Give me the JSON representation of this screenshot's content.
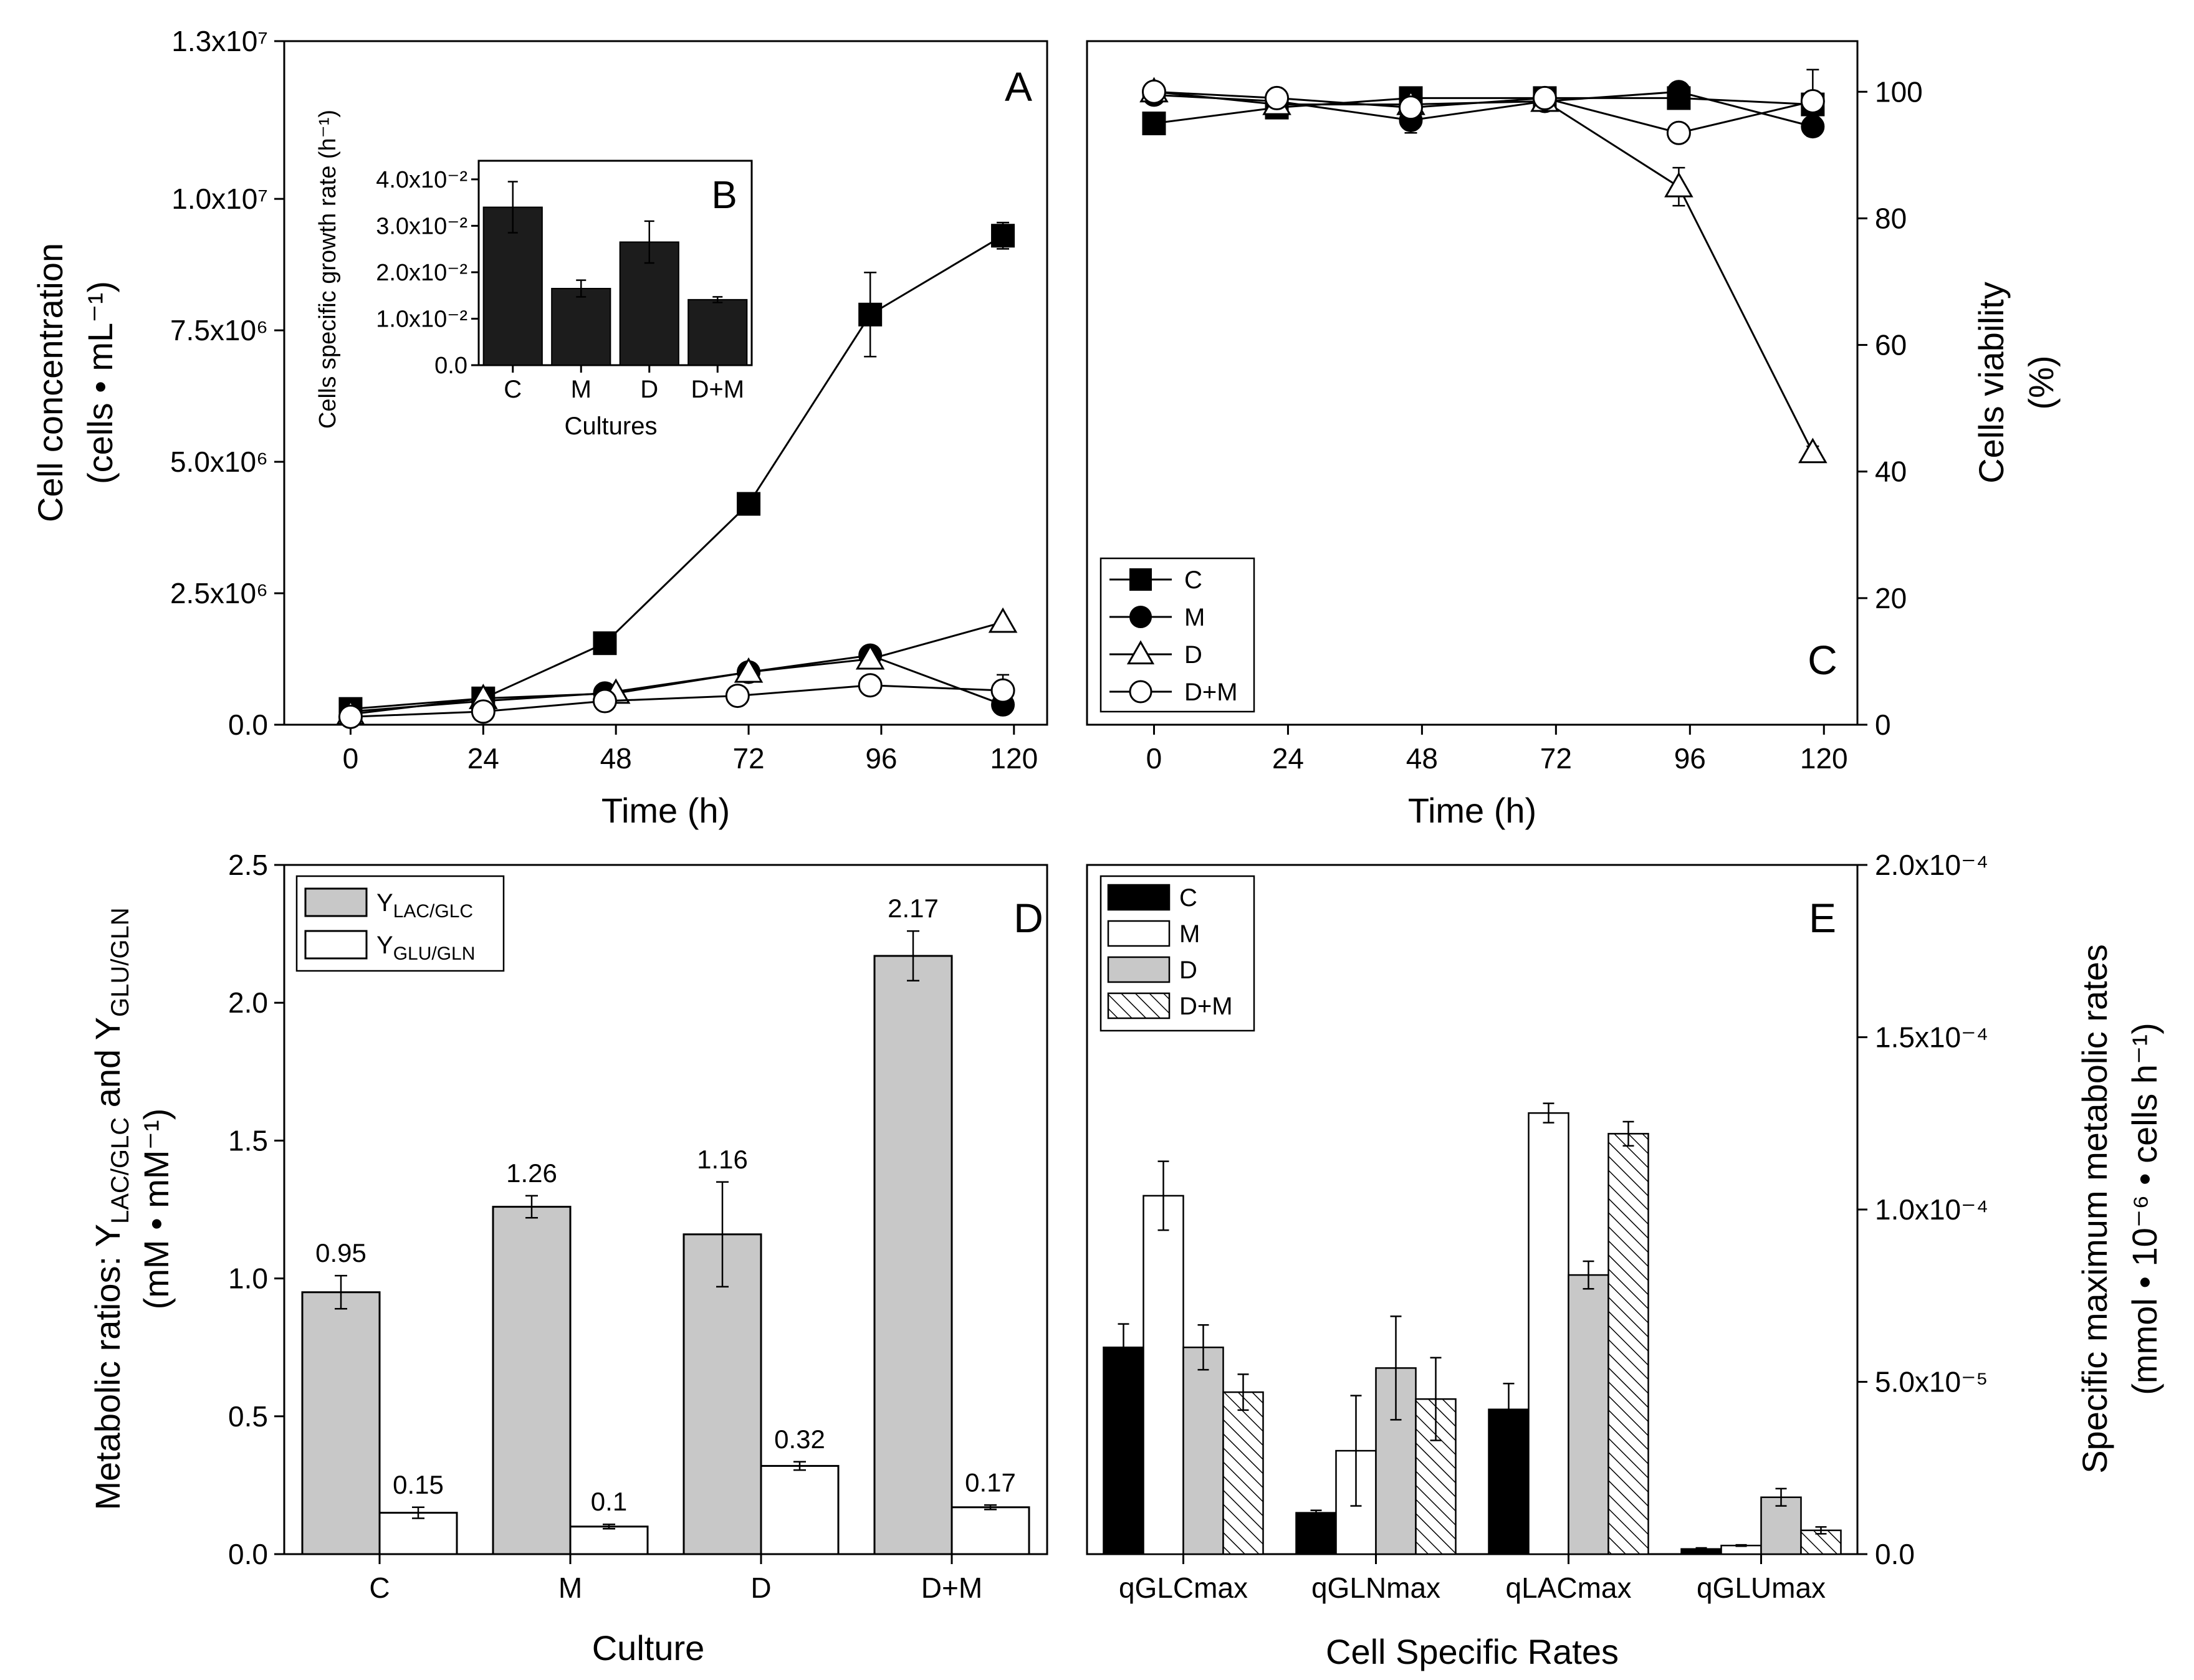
{
  "chart_data": [
    {
      "id": "A",
      "panel_label": "A",
      "type": "line",
      "xlabel": "Time (h)",
      "ylabel_line1": "Cell concentration",
      "ylabel_line2": "(cells • mL⁻¹)",
      "x_ticks": [
        0,
        24,
        48,
        72,
        96,
        120
      ],
      "x_tick_labels": [
        "0",
        "24",
        "48",
        "72",
        "96",
        "120"
      ],
      "y_ticks": [
        0,
        2500000,
        5000000,
        7500000,
        10000000,
        13000000
      ],
      "y_tick_labels": [
        "0.0",
        "2.5x10⁶",
        "5.0x10⁶",
        "7.5x10⁶",
        "1.0x10⁷",
        "1.3x10⁷"
      ],
      "xlim": [
        -12,
        126
      ],
      "ylim": [
        0,
        13000000
      ],
      "series": [
        {
          "name": "C",
          "marker": "square-filled",
          "x": [
            0,
            24,
            46,
            72,
            94,
            118
          ],
          "y": [
            300000,
            500000,
            1550000,
            4200000,
            7800000,
            9300000
          ],
          "err": [
            60000,
            50000,
            120000,
            100000,
            800000,
            250000
          ]
        },
        {
          "name": "M",
          "marker": "circle-filled",
          "x": [
            0,
            24,
            46,
            72,
            94,
            118
          ],
          "y": [
            250000,
            450000,
            600000,
            1000000,
            1320000,
            380000
          ],
          "err": [
            40000,
            50000,
            50000,
            60000,
            100000,
            90000
          ]
        },
        {
          "name": "D",
          "marker": "triangle-open",
          "x": [
            0,
            24,
            48,
            72,
            94,
            118
          ],
          "y": [
            200000,
            500000,
            600000,
            1000000,
            1250000,
            1950000
          ],
          "err": [
            40000,
            50000,
            50000,
            60000,
            100000,
            60000
          ]
        },
        {
          "name": "D+M",
          "marker": "circle-open",
          "x": [
            0,
            24,
            46,
            70,
            94,
            118
          ],
          "y": [
            150000,
            250000,
            450000,
            550000,
            750000,
            650000
          ],
          "err": [
            30000,
            40000,
            50000,
            50000,
            80000,
            300000
          ]
        }
      ]
    },
    {
      "id": "B",
      "panel_label": "B",
      "type": "bar",
      "title": "",
      "xlabel": "Cultures",
      "ylabel": "Cells specific growth rate (h⁻¹)",
      "categories": [
        "C",
        "M",
        "D",
        "D+M"
      ],
      "values": [
        0.034,
        0.0165,
        0.0265,
        0.0141
      ],
      "err": [
        0.0055,
        0.0018,
        0.0045,
        0.0006
      ],
      "y_ticks": [
        0,
        0.01,
        0.02,
        0.03,
        0.04
      ],
      "y_tick_labels": [
        "0.0",
        "1.0x10⁻²",
        "2.0x10⁻²",
        "3.0x10⁻²",
        "4.0x10⁻²"
      ],
      "ylim": [
        0,
        0.044
      ],
      "color": "#1c1c1c"
    },
    {
      "id": "C",
      "panel_label": "C",
      "type": "line",
      "xlabel": "Time (h)",
      "ylabel_line1": "Cells viability",
      "ylabel_line2": "(%)",
      "x_ticks": [
        0,
        24,
        48,
        72,
        96,
        120
      ],
      "x_tick_labels": [
        "0",
        "24",
        "48",
        "72",
        "96",
        "120"
      ],
      "y_ticks": [
        0,
        20,
        40,
        60,
        80,
        100
      ],
      "y_tick_labels": [
        "0",
        "20",
        "40",
        "60",
        "80",
        "100"
      ],
      "xlim": [
        -12,
        126
      ],
      "ylim": [
        0,
        108
      ],
      "legend_position": "bottom-left",
      "series": [
        {
          "name": "C",
          "marker": "square-filled",
          "x": [
            0,
            22,
            46,
            70,
            94,
            118
          ],
          "y": [
            95,
            97.5,
            99,
            99,
            99,
            98
          ],
          "err": [
            0.5,
            1,
            1,
            1,
            1,
            1
          ]
        },
        {
          "name": "M",
          "marker": "circle-filled",
          "x": [
            0,
            22,
            46,
            70,
            94,
            118
          ],
          "y": [
            99.5,
            98.5,
            95.5,
            98.5,
            100,
            94.5
          ],
          "err": [
            0.5,
            1,
            2,
            1,
            1,
            1.5
          ]
        },
        {
          "name": "D",
          "marker": "triangle-open",
          "x": [
            0,
            22,
            46,
            70,
            94,
            118
          ],
          "y": [
            100,
            98,
            98,
            98.5,
            85,
            43
          ],
          "err": [
            0.5,
            1,
            1,
            1,
            3,
            1
          ]
        },
        {
          "name": "D+M",
          "marker": "circle-open",
          "x": [
            0,
            22,
            46,
            70,
            94,
            118
          ],
          "y": [
            100,
            99,
            97.5,
            99,
            93.5,
            98.5
          ],
          "err": [
            0.5,
            1,
            1,
            1,
            1,
            5
          ]
        }
      ]
    },
    {
      "id": "D",
      "panel_label": "D",
      "type": "bar",
      "xlabel": "Culture",
      "ylabel_line1": "Metabolic ratios: Y",
      "ylabel_sub1": "LAC/GLC",
      "ylabel_mid": " and Y",
      "ylabel_sub2": "GLU/GLN",
      "ylabel_line2": "(mM • mM⁻¹)",
      "categories": [
        "C",
        "M",
        "D",
        "D+M"
      ],
      "series": [
        {
          "name": "Y",
          "name_sub": "LAC/GLC",
          "color": "#c8c8c8",
          "values": [
            0.95,
            1.26,
            1.16,
            2.17
          ],
          "err": [
            0.06,
            0.04,
            0.19,
            0.09
          ],
          "labels": [
            "0.95",
            "1.26",
            "1.16",
            "2.17"
          ]
        },
        {
          "name": "Y",
          "name_sub": "GLU/GLN",
          "color": "#ffffff",
          "values": [
            0.15,
            0.1,
            0.32,
            0.17
          ],
          "err": [
            0.02,
            0.008,
            0.015,
            0.008
          ],
          "labels": [
            "0.15",
            "0.1",
            "0.32",
            "0.17"
          ]
        }
      ],
      "y_ticks": [
        0,
        0.5,
        1.0,
        1.5,
        2.0,
        2.5
      ],
      "y_tick_labels": [
        "0.0",
        "0.5",
        "1.0",
        "1.5",
        "2.0",
        "2.5"
      ],
      "ylim": [
        0,
        2.5
      ],
      "legend_position": "top-left"
    },
    {
      "id": "E",
      "panel_label": "E",
      "type": "bar",
      "xlabel": "Cell Specific Rates",
      "ylabel_line1": "Specific maximum metabolic rates",
      "ylabel_line2": "(mmol • 10⁻⁶ • cells h⁻¹)",
      "categories": [
        "qGLCmax",
        "qGLNmax",
        "qLACmax",
        "qGLUmax"
      ],
      "series": [
        {
          "name": "C",
          "fill": "#000000",
          "values": [
            6e-05,
            1.2e-05,
            4.2e-05,
            1.5e-06
          ],
          "err": [
            6.8e-06,
            7e-07,
            7.5e-06,
            3e-07
          ]
        },
        {
          "name": "M",
          "fill": "#ffffff",
          "values": [
            0.000104,
            3e-05,
            0.000128,
            2.5e-06
          ],
          "err": [
            1e-05,
            1.6e-05,
            2.8e-06,
            2e-07
          ]
        },
        {
          "name": "D",
          "fill": "#c8c8c8",
          "values": [
            6e-05,
            5.4e-05,
            8.1e-05,
            1.65e-05
          ],
          "err": [
            6.5e-06,
            1.5e-05,
            4e-06,
            2.5e-06
          ]
        },
        {
          "name": "D+M",
          "fill": "hatch",
          "values": [
            4.7e-05,
            4.5e-05,
            0.000122,
            6.9e-06
          ],
          "err": [
            5.2e-06,
            1.2e-05,
            3.5e-06,
            1e-06
          ]
        }
      ],
      "y_ticks": [
        0,
        5e-05,
        0.0001,
        0.00015,
        0.0002
      ],
      "y_tick_labels": [
        "0.0",
        "5.0x10⁻⁵",
        "1.0x10⁻⁴",
        "1.5x10⁻⁴",
        "2.0x10⁻⁴"
      ],
      "ylim": [
        0,
        0.0002
      ],
      "legend_position": "top-left"
    }
  ]
}
